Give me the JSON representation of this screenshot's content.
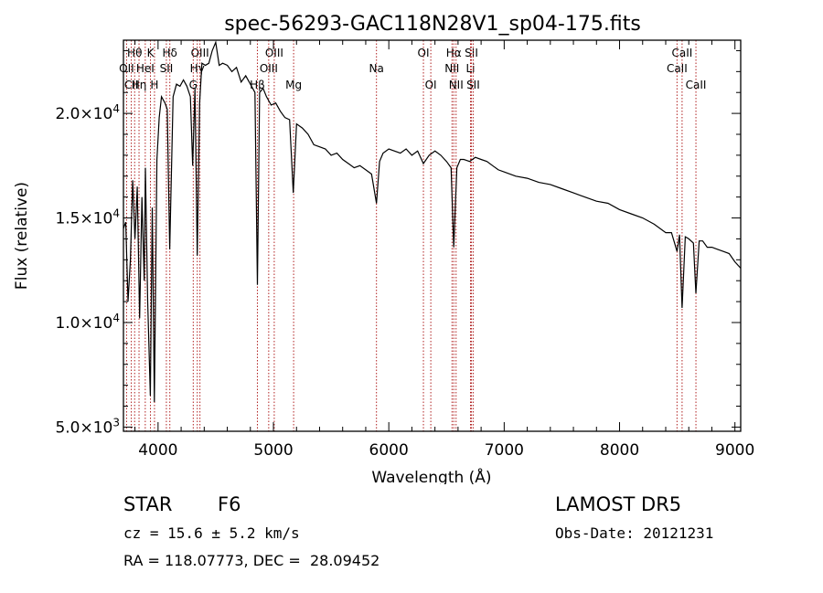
{
  "title": "spec-56293-GAC118N28V1_sp04-175.fits",
  "xlabel": "Wavelength (Å)",
  "ylabel": "Flux (relative)",
  "info": {
    "object_class": "STAR",
    "subclass": "F6",
    "survey": "LAMOST DR5",
    "cz": "cz = 15.6 ± 5.2 km/s",
    "obs_date": "Obs-Date: 20121231",
    "radec": "RA = 118.07773, DEC =  28.09452"
  },
  "colors": {
    "spectrum": "#000000",
    "line_markers": "#b02020",
    "axes": "#000000"
  },
  "chart_data": {
    "type": "line",
    "title": "spec-56293-GAC118N28V1_sp04-175.fits",
    "xlabel": "Wavelength (Å)",
    "ylabel": "Flux (relative)",
    "xlim": [
      3700,
      9050
    ],
    "ylim": [
      4800,
      23500
    ],
    "x_ticks": [
      4000,
      5000,
      6000,
      7000,
      8000,
      9000
    ],
    "y_ticks": [
      {
        "value": 5000,
        "mantissa": "5.0",
        "exp": "3"
      },
      {
        "value": 10000,
        "mantissa": "1.0",
        "exp": "4"
      },
      {
        "value": 15000,
        "mantissa": "1.5",
        "exp": "4"
      },
      {
        "value": 20000,
        "mantissa": "2.0",
        "exp": "4"
      }
    ],
    "series": [
      {
        "x": [
          3700,
          3720,
          3740,
          3760,
          3780,
          3800,
          3820,
          3840,
          3860,
          3880,
          3890,
          3910,
          3933,
          3950,
          3968,
          3990,
          4010,
          4030,
          4060,
          4080,
          4101,
          4130,
          4160,
          4190,
          4220,
          4250,
          4280,
          4300,
          4320,
          4340,
          4360,
          4380,
          4410,
          4440,
          4470,
          4500,
          4530,
          4560,
          4600,
          4640,
          4680,
          4720,
          4760,
          4800,
          4840,
          4861,
          4880,
          4910,
          4940,
          4980,
          5020,
          5060,
          5100,
          5140,
          5172,
          5200,
          5250,
          5300,
          5350,
          5400,
          5450,
          5500,
          5550,
          5600,
          5650,
          5700,
          5750,
          5800,
          5850,
          5893,
          5920,
          5950,
          6000,
          6050,
          6100,
          6150,
          6200,
          6250,
          6300,
          6350,
          6400,
          6450,
          6500,
          6540,
          6563,
          6590,
          6620,
          6650,
          6700,
          6750,
          6800,
          6850,
          6900,
          6950,
          7000,
          7100,
          7200,
          7300,
          7400,
          7500,
          7600,
          7700,
          7800,
          7900,
          8000,
          8100,
          8200,
          8300,
          8400,
          8450,
          8498,
          8520,
          8542,
          8570,
          8600,
          8640,
          8662,
          8690,
          8720,
          8760,
          8800,
          8850,
          8900,
          8950,
          9000,
          9050
        ],
        "y": [
          14500,
          14800,
          11000,
          13000,
          16800,
          14000,
          16500,
          10200,
          16000,
          12000,
          17400,
          11000,
          6500,
          15500,
          6200,
          17800,
          19800,
          20800,
          20500,
          20200,
          13500,
          20800,
          21400,
          21300,
          21600,
          21300,
          20800,
          17500,
          21200,
          13200,
          20500,
          22400,
          22300,
          22400,
          23000,
          23400,
          22300,
          22400,
          22300,
          22000,
          22200,
          21500,
          21800,
          21400,
          21000,
          11800,
          21000,
          21200,
          20800,
          20400,
          20500,
          20100,
          19800,
          19700,
          16200,
          19500,
          19300,
          19000,
          18500,
          18400,
          18300,
          18000,
          18100,
          17800,
          17600,
          17400,
          17500,
          17300,
          17100,
          15700,
          17700,
          18100,
          18300,
          18200,
          18100,
          18300,
          18000,
          18200,
          17600,
          18000,
          18200,
          18000,
          17700,
          17400,
          13600,
          17400,
          17800,
          17800,
          17700,
          17900,
          17800,
          17700,
          17500,
          17300,
          17200,
          17000,
          16900,
          16700,
          16600,
          16400,
          16200,
          16000,
          15800,
          15700,
          15400,
          15200,
          15000,
          14700,
          14300,
          14300,
          13400,
          14200,
          10700,
          14100,
          14000,
          13800,
          11400,
          13900,
          13900,
          13600,
          13600,
          13500,
          13400,
          13300,
          12900,
          12600
        ]
      }
    ],
    "line_markers": [
      {
        "name": "Hθ",
        "wave": 3797,
        "row": 1
      },
      {
        "name": "K",
        "wave": 3934,
        "row": 1
      },
      {
        "name": "Hδ",
        "wave": 4102,
        "row": 1
      },
      {
        "name": "OIII",
        "wave": 4363,
        "row": 1
      },
      {
        "name": "OIII",
        "wave": 5007,
        "row": 1
      },
      {
        "name": "OI",
        "wave": 6300,
        "row": 1
      },
      {
        "name": "Hα",
        "wave": 6563,
        "row": 1
      },
      {
        "name": "SII",
        "wave": 6716,
        "row": 1
      },
      {
        "name": "CaII",
        "wave": 8542,
        "row": 1
      },
      {
        "name": "OII",
        "wave": 3727,
        "row": 2
      },
      {
        "name": "HeI",
        "wave": 3889,
        "row": 2
      },
      {
        "name": "SII",
        "wave": 4072,
        "row": 2
      },
      {
        "name": "Hγ",
        "wave": 4340,
        "row": 2
      },
      {
        "name": "OIII",
        "wave": 4959,
        "row": 2
      },
      {
        "name": "Na",
        "wave": 5893,
        "row": 2
      },
      {
        "name": "NII",
        "wave": 6548,
        "row": 2
      },
      {
        "name": "Li",
        "wave": 6708,
        "row": 2
      },
      {
        "name": "CaII",
        "wave": 8498,
        "row": 2
      },
      {
        "name": "CII",
        "wave": 3768,
        "row": 3
      },
      {
        "name": "Hη",
        "wave": 3835,
        "row": 3
      },
      {
        "name": "H",
        "wave": 3969,
        "row": 3
      },
      {
        "name": "G",
        "wave": 4305,
        "row": 3
      },
      {
        "name": "Hβ",
        "wave": 4861,
        "row": 3
      },
      {
        "name": "Mg",
        "wave": 5175,
        "row": 3
      },
      {
        "name": "OI",
        "wave": 6364,
        "row": 3
      },
      {
        "name": "NII",
        "wave": 6583,
        "row": 3
      },
      {
        "name": "SII",
        "wave": 6731,
        "row": 3
      },
      {
        "name": "CaII",
        "wave": 8662,
        "row": 3
      }
    ]
  }
}
